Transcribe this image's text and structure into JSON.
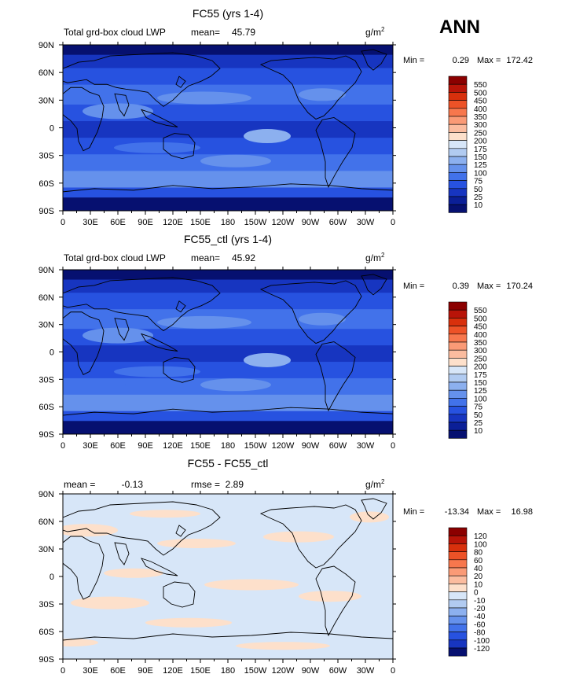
{
  "season": "ANN",
  "unit_base": "g/m",
  "unit_exp": "2",
  "chart_data": [
    {
      "type": "heatmap",
      "title": "FC55 (yrs 1-4)",
      "subtitle_left": "Total grd-box cloud LWP",
      "mean_label": "mean=",
      "mean": "45.79",
      "min_label": "Min =",
      "min": "0.29",
      "max_label": "Max =",
      "max": "172.42",
      "x_ticks": [
        "0",
        "30E",
        "60E",
        "90E",
        "120E",
        "150E",
        "180",
        "150W",
        "120W",
        "90W",
        "60W",
        "30W",
        "0"
      ],
      "y_ticks": [
        "90N",
        "60N",
        "30N",
        "0",
        "30S",
        "60S",
        "90S"
      ],
      "colorbar_labels": [
        "550",
        "500",
        "450",
        "400",
        "350",
        "300",
        "250",
        "200",
        "175",
        "150",
        "125",
        "100",
        "75",
        "50",
        "25",
        "10"
      ],
      "colors": [
        "#8b0000",
        "#b81408",
        "#d8300c",
        "#ed5227",
        "#f7774d",
        "#fa9a76",
        "#fbbc9f",
        "#fde0cb",
        "#d7e6f8",
        "#b1cbf1",
        "#8cb0ef",
        "#6591ec",
        "#4272ea",
        "#2752e0",
        "#1735c0",
        "#0b1f97",
        "#061070"
      ]
    },
    {
      "type": "heatmap",
      "title": "FC55_ctl (yrs 1-4)",
      "subtitle_left": "Total grd-box cloud LWP",
      "mean_label": "mean=",
      "mean": "45.92",
      "min_label": "Min =",
      "min": "0.39",
      "max_label": "Max =",
      "max": "170.24",
      "x_ticks": [
        "0",
        "30E",
        "60E",
        "90E",
        "120E",
        "150E",
        "180",
        "150W",
        "120W",
        "90W",
        "60W",
        "30W",
        "0"
      ],
      "y_ticks": [
        "90N",
        "60N",
        "30N",
        "0",
        "30S",
        "60S",
        "90S"
      ],
      "colorbar_labels": [
        "550",
        "500",
        "450",
        "400",
        "350",
        "300",
        "250",
        "200",
        "175",
        "150",
        "125",
        "100",
        "75",
        "50",
        "25",
        "10"
      ],
      "colors": [
        "#8b0000",
        "#b81408",
        "#d8300c",
        "#ed5227",
        "#f7774d",
        "#fa9a76",
        "#fbbc9f",
        "#fde0cb",
        "#d7e6f8",
        "#b1cbf1",
        "#8cb0ef",
        "#6591ec",
        "#4272ea",
        "#2752e0",
        "#1735c0",
        "#0b1f97",
        "#061070"
      ]
    },
    {
      "type": "heatmap",
      "title": "FC55 - FC55_ctl",
      "mean_label": "mean =",
      "mean": "-0.13",
      "rmse_label": "rmse =",
      "rmse": "2.89",
      "min_label": "Min =",
      "min": "-13.34",
      "max_label": "Max =",
      "max": "16.98",
      "x_ticks": [
        "0",
        "30E",
        "60E",
        "90E",
        "120E",
        "150E",
        "180",
        "150W",
        "120W",
        "90W",
        "60W",
        "30W",
        "0"
      ],
      "y_ticks": [
        "90N",
        "60N",
        "30N",
        "0",
        "30S",
        "60S",
        "90S"
      ],
      "colorbar_labels": [
        "120",
        "100",
        "80",
        "60",
        "40",
        "20",
        "10",
        "0",
        "-10",
        "-20",
        "-40",
        "-60",
        "-80",
        "-100",
        "-120"
      ],
      "colors": [
        "#8b0000",
        "#b81408",
        "#d8300c",
        "#ed5227",
        "#f7774d",
        "#fa9a76",
        "#fbbc9f",
        "#fde0cb",
        "#d7e6f8",
        "#b1cbf1",
        "#8cb0ef",
        "#6591ec",
        "#4272ea",
        "#2752e0",
        "#1735c0",
        "#061070"
      ]
    }
  ]
}
